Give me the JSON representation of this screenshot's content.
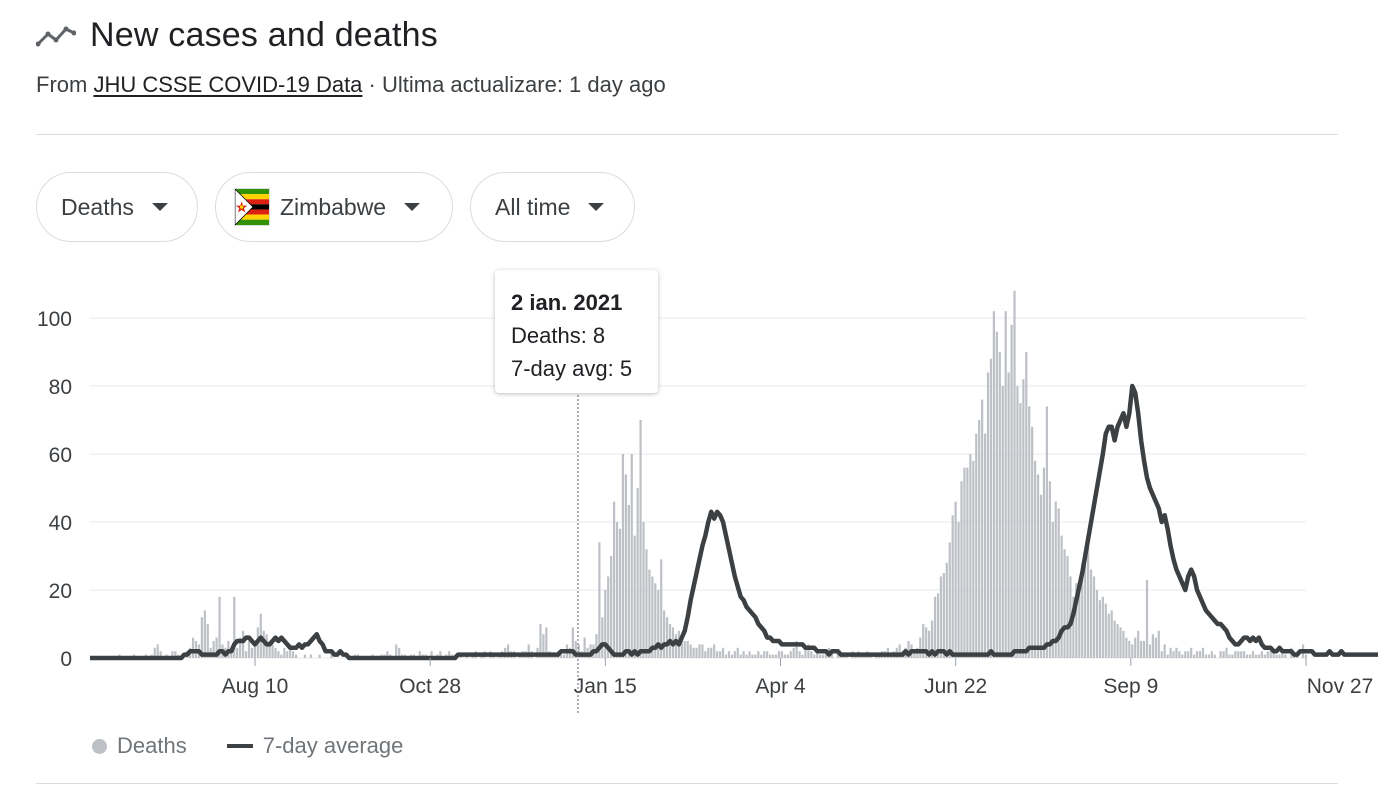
{
  "header": {
    "title": "New cases and deaths",
    "source_prefix": "From",
    "source_link": "JHU CSSE COVID-19 Data",
    "source_suffix": "· Ultima actualizare: 1 day ago"
  },
  "filters": {
    "metric": "Deaths",
    "country": "Zimbabwe",
    "range": "All time"
  },
  "tooltip": {
    "date": "2 ian. 2021",
    "deaths": "Deaths: 8",
    "avg": "7-day avg: 5"
  },
  "legend": {
    "bars": "Deaths",
    "line": "7-day average"
  },
  "colors": {
    "bars": "#bdc1c6",
    "line": "#3c4043",
    "grid": "#e8eaed"
  },
  "chart_data": {
    "type": "bar",
    "x_ticks": [
      "Aug 10",
      "Oct 28",
      "Jan 15",
      "Apr 4",
      "Jun 22",
      "Sep 9",
      "Nov 27"
    ],
    "y_ticks": [
      "100",
      "80",
      "60",
      "40",
      "20",
      "0"
    ],
    "ylim": [
      0,
      100
    ],
    "grid": true,
    "series": [
      {
        "name": "Deaths",
        "kind": "bar",
        "values": [
          0,
          0,
          0,
          0,
          0,
          0,
          0,
          0,
          0,
          0,
          1,
          0,
          0,
          0,
          0,
          1,
          0,
          0,
          0,
          1,
          0,
          1,
          3,
          4,
          2,
          0,
          1,
          0,
          2,
          2,
          1,
          0,
          0,
          2,
          3,
          6,
          5,
          4,
          12,
          14,
          10,
          3,
          5,
          6,
          18,
          4,
          3,
          5,
          2,
          18,
          3,
          6,
          8,
          2,
          5,
          3,
          5,
          9,
          13,
          8,
          7,
          5,
          4,
          3,
          2,
          1,
          3,
          2,
          4,
          2,
          1,
          0,
          0,
          1,
          0,
          1,
          0,
          0,
          1,
          0,
          0,
          0,
          1,
          0,
          0,
          0,
          0,
          1,
          0,
          0,
          1,
          1,
          0,
          0,
          0,
          0,
          1,
          0,
          0,
          1,
          1,
          2,
          1,
          0,
          4,
          3,
          1,
          1,
          0,
          1,
          1,
          0,
          2,
          1,
          1,
          0,
          2,
          0,
          1,
          2,
          0,
          1,
          2,
          1,
          1,
          0,
          1,
          0,
          1,
          0,
          1,
          2,
          0,
          1,
          2,
          0,
          2,
          1,
          0,
          1,
          2,
          3,
          4,
          2,
          2,
          0,
          1,
          2,
          2,
          4,
          2,
          0,
          3,
          10,
          7,
          9,
          2,
          1,
          1,
          2,
          1,
          1,
          4,
          3,
          9,
          5,
          4,
          2,
          6,
          3,
          4,
          4,
          7,
          34,
          12,
          20,
          24,
          30,
          46,
          40,
          38,
          60,
          54,
          45,
          60,
          36,
          50,
          70,
          40,
          32,
          26,
          24,
          22,
          20,
          29,
          14,
          12,
          10,
          9,
          7,
          8,
          6,
          5,
          5,
          4,
          3,
          3,
          4,
          4,
          2,
          3,
          3,
          4,
          2,
          2,
          3,
          1,
          2,
          1,
          2,
          3,
          1,
          2,
          1,
          2,
          1,
          1,
          2,
          1,
          2,
          2,
          1,
          1,
          1,
          2,
          2,
          1,
          1,
          2,
          3,
          5,
          2,
          1,
          3,
          4,
          2,
          1,
          2,
          1,
          1,
          2,
          3,
          2,
          0,
          2,
          1,
          1,
          1,
          0,
          2,
          1,
          2,
          1,
          1,
          2,
          1,
          0,
          1,
          1,
          2,
          2,
          3,
          1,
          2,
          3,
          4,
          2,
          3,
          5,
          4,
          2,
          3,
          6,
          10,
          9,
          8,
          11,
          18,
          19,
          24,
          25,
          28,
          34,
          42,
          46,
          40,
          52,
          56,
          56,
          60,
          58,
          66,
          70,
          76,
          66,
          84,
          88,
          102,
          96,
          90,
          80,
          102,
          84,
          98,
          108,
          80,
          75,
          82,
          90,
          74,
          68,
          58,
          54,
          48,
          56,
          74,
          52,
          40,
          46,
          44,
          36,
          32,
          30,
          24,
          18,
          22,
          20,
          28,
          30,
          34,
          26,
          24,
          20,
          17,
          18,
          16,
          13,
          14,
          11,
          10,
          9,
          8,
          6,
          5,
          4,
          6,
          8,
          5,
          5,
          23,
          4,
          7,
          6,
          8,
          2,
          4,
          1,
          3,
          2,
          3,
          2,
          1,
          2,
          2,
          3,
          1,
          2,
          2,
          3,
          1,
          1,
          2,
          1,
          0,
          2,
          2,
          3,
          1,
          1,
          2,
          2,
          2,
          2,
          1,
          1,
          2,
          1,
          1,
          2,
          1,
          2,
          2,
          3,
          1,
          1,
          2,
          1,
          0,
          3,
          1,
          1,
          0,
          4,
          1
        ]
      },
      {
        "name": "7-day average",
        "kind": "line",
        "values": [
          0,
          0,
          0,
          0,
          0,
          0,
          0,
          0,
          0,
          0,
          0,
          0,
          0,
          0,
          0,
          0,
          0,
          0,
          0,
          0,
          0,
          0,
          0,
          0,
          0,
          0,
          0,
          0,
          0,
          0,
          0,
          0,
          1,
          1,
          2,
          2,
          2,
          2,
          1,
          1,
          1,
          1,
          1,
          1,
          2,
          2,
          1,
          2,
          2,
          4,
          5,
          5,
          5,
          6,
          6,
          5,
          4,
          5,
          6,
          5,
          4,
          4,
          5,
          6,
          5,
          6,
          5,
          4,
          3,
          3,
          3,
          4,
          3,
          4,
          4,
          5,
          6,
          7,
          5,
          4,
          2,
          2,
          2,
          1,
          1,
          2,
          1,
          1,
          0,
          0,
          0,
          0,
          0,
          0,
          0,
          0,
          0,
          0,
          0,
          0,
          0,
          0,
          0,
          0,
          0,
          0,
          0,
          0,
          0,
          0,
          0,
          0,
          0,
          0,
          0,
          0,
          0,
          0,
          0,
          0,
          0,
          0,
          0,
          0,
          0,
          1,
          1,
          1,
          1,
          1,
          1,
          1,
          1,
          1,
          1,
          1,
          1,
          1,
          1,
          1,
          1,
          1,
          1,
          1,
          1,
          1,
          1,
          1,
          1,
          1,
          1,
          1,
          1,
          1,
          1,
          1,
          1,
          1,
          1,
          1,
          2,
          2,
          2,
          2,
          2,
          1,
          1,
          1,
          1,
          1,
          1,
          2,
          2,
          3,
          4,
          4,
          3,
          2,
          1,
          1,
          1,
          1,
          2,
          2,
          1,
          2,
          1,
          2,
          2,
          2,
          2,
          3,
          3,
          4,
          3,
          4,
          4,
          5,
          4,
          5,
          4,
          6,
          8,
          12,
          17,
          21,
          25,
          29,
          33,
          36,
          40,
          43,
          41,
          43,
          42,
          40,
          36,
          32,
          28,
          24,
          21,
          18,
          17,
          15,
          14,
          13,
          12,
          10,
          9,
          8,
          6,
          6,
          5,
          5,
          5,
          4,
          4,
          4,
          4,
          4,
          4,
          4,
          4,
          3,
          3,
          3,
          3,
          2,
          2,
          2,
          2,
          1,
          2,
          2,
          2,
          1,
          1,
          1,
          1,
          1,
          1,
          1,
          1,
          1,
          1,
          1,
          1,
          1,
          1,
          1,
          1,
          1,
          1,
          1,
          1,
          1,
          1,
          2,
          1,
          2,
          2,
          2,
          2,
          2,
          2,
          1,
          2,
          1,
          2,
          2,
          2,
          1,
          2,
          1,
          1,
          1,
          1,
          1,
          1,
          1,
          1,
          1,
          1,
          1,
          1,
          1,
          2,
          1,
          1,
          1,
          1,
          1,
          1,
          1,
          2,
          2,
          2,
          2,
          2,
          3,
          3,
          3,
          3,
          3,
          3,
          4,
          4,
          5,
          5,
          6,
          8,
          9,
          9,
          10,
          13,
          17,
          21,
          25,
          30,
          35,
          40,
          45,
          50,
          55,
          60,
          66,
          68,
          68,
          64,
          68,
          70,
          72,
          68,
          72,
          80,
          78,
          72,
          64,
          58,
          53,
          50,
          48,
          46,
          44,
          40,
          42,
          38,
          33,
          29,
          26,
          24,
          22,
          20,
          24,
          26,
          24,
          20,
          18,
          16,
          14,
          13,
          12,
          11,
          10,
          10,
          9,
          8,
          6,
          5,
          4,
          4,
          5,
          6,
          6,
          5,
          6,
          5,
          6,
          4,
          3,
          3,
          3,
          2,
          2,
          3,
          2,
          2,
          2,
          2,
          1,
          1,
          2,
          2,
          2,
          2,
          2,
          1,
          1,
          1,
          1,
          1,
          2,
          1,
          1,
          1,
          2,
          1,
          1,
          1,
          1,
          1,
          1,
          1,
          1,
          1,
          1,
          1,
          1,
          1,
          1,
          0,
          1,
          1
        ]
      }
    ]
  }
}
